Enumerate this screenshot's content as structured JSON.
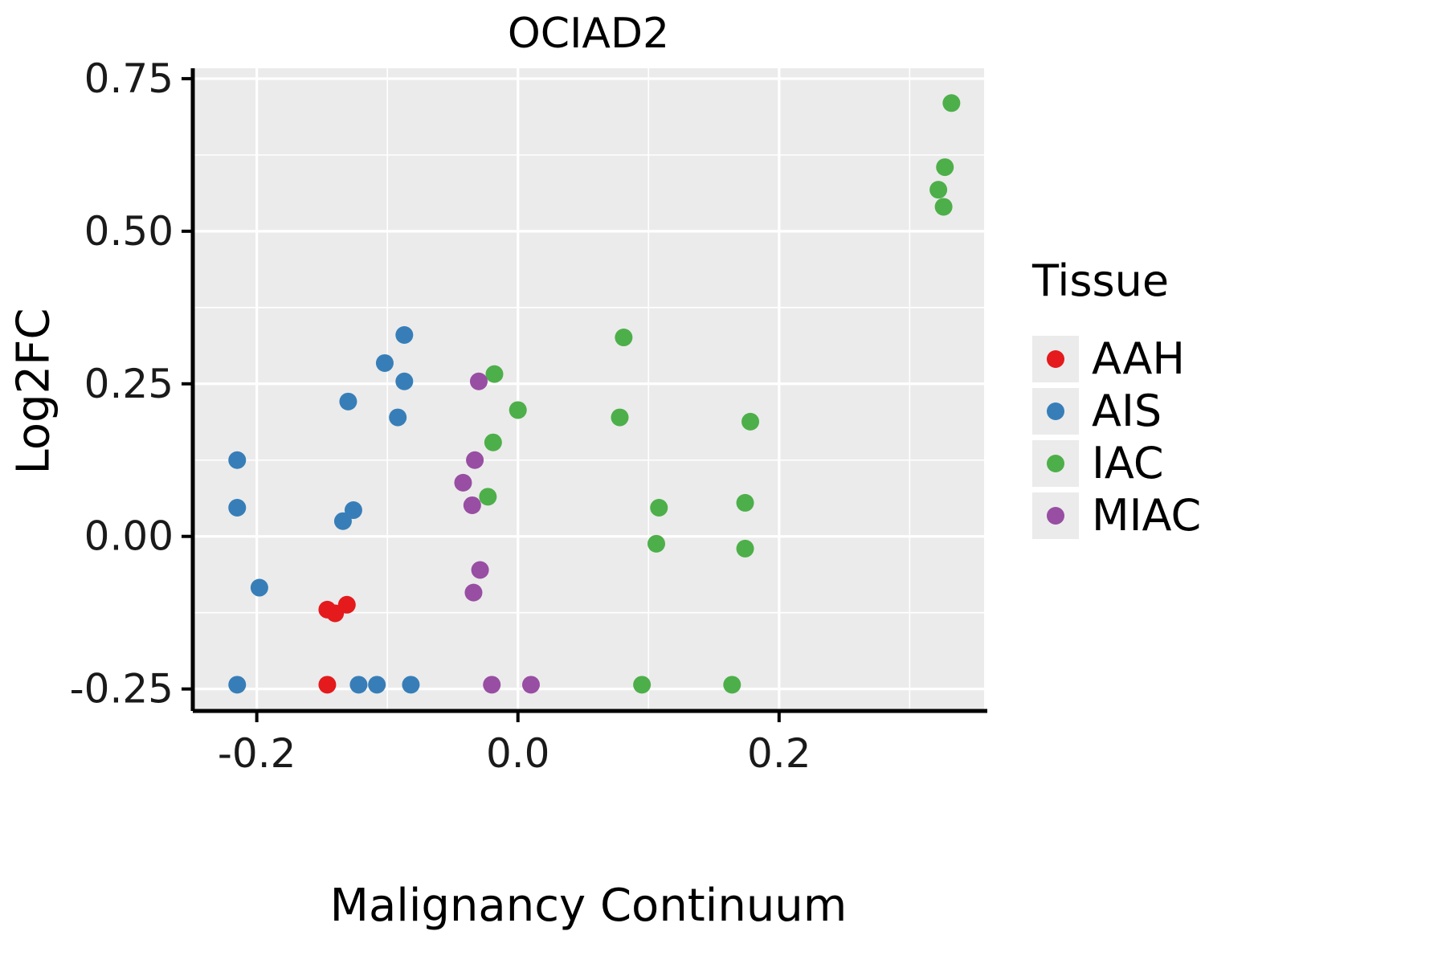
{
  "title": "OCIAD2",
  "axes": {
    "x_label": "Malignancy Continuum",
    "y_label": "Log2FC"
  },
  "legend": {
    "title": "Tissue"
  },
  "panel": {
    "background": "#ebebeb",
    "grid_color": "#ffffff",
    "axis_color": "#000000"
  },
  "chart_data": {
    "type": "scatter",
    "title": "OCIAD2",
    "xlabel": "Malignancy Continuum",
    "ylabel": "Log2FC",
    "xlim": [
      -0.249,
      0.357
    ],
    "ylim": [
      -0.286,
      0.767
    ],
    "xticks": [
      -0.2,
      0.0,
      0.2
    ],
    "xtick_labels": [
      "-0.2",
      "0.0",
      "0.2"
    ],
    "yticks": [
      -0.25,
      0.0,
      0.25,
      0.5,
      0.75
    ],
    "ytick_labels": [
      "-0.25",
      "0.00",
      "0.25",
      "0.50",
      "0.75"
    ],
    "x_minor_ticks": [
      -0.1,
      0.1,
      0.3
    ],
    "y_minor_ticks": [
      -0.125,
      0.125,
      0.375,
      0.625
    ],
    "grid": true,
    "legend_position": "right",
    "legend_title": "Tissue",
    "point_radius": 11,
    "series": [
      {
        "name": "AAH",
        "color": "#E41A1C",
        "points": [
          [
            -0.146,
            -0.12
          ],
          [
            -0.14,
            -0.126
          ],
          [
            -0.131,
            -0.112
          ],
          [
            -0.146,
            -0.243
          ]
        ]
      },
      {
        "name": "AIS",
        "color": "#377EB8",
        "points": [
          [
            -0.215,
            0.125
          ],
          [
            -0.215,
            0.047
          ],
          [
            -0.198,
            -0.084
          ],
          [
            -0.215,
            -0.243
          ],
          [
            -0.134,
            0.025
          ],
          [
            -0.126,
            0.043
          ],
          [
            -0.13,
            0.221
          ],
          [
            -0.102,
            0.284
          ],
          [
            -0.087,
            0.33
          ],
          [
            -0.087,
            0.254
          ],
          [
            -0.092,
            0.195
          ],
          [
            -0.122,
            -0.243
          ],
          [
            -0.108,
            -0.243
          ],
          [
            -0.082,
            -0.243
          ]
        ]
      },
      {
        "name": "IAC",
        "color": "#4DAF4A",
        "points": [
          [
            -0.018,
            0.266
          ],
          [
            0.0,
            0.207
          ],
          [
            -0.019,
            0.154
          ],
          [
            -0.023,
            0.065
          ],
          [
            0.081,
            0.326
          ],
          [
            0.078,
            0.195
          ],
          [
            0.108,
            0.047
          ],
          [
            0.106,
            -0.012
          ],
          [
            0.095,
            -0.243
          ],
          [
            0.178,
            0.188
          ],
          [
            0.174,
            0.055
          ],
          [
            0.174,
            -0.02
          ],
          [
            0.164,
            -0.243
          ],
          [
            0.332,
            0.71
          ],
          [
            0.327,
            0.605
          ],
          [
            0.322,
            0.568
          ],
          [
            0.326,
            0.54
          ]
        ]
      },
      {
        "name": "MIAC",
        "color": "#984EA3",
        "points": [
          [
            -0.03,
            0.254
          ],
          [
            -0.033,
            0.125
          ],
          [
            -0.042,
            0.088
          ],
          [
            -0.035,
            0.051
          ],
          [
            -0.029,
            -0.055
          ],
          [
            -0.034,
            -0.092
          ],
          [
            -0.02,
            -0.243
          ],
          [
            0.01,
            -0.243
          ]
        ]
      }
    ]
  }
}
